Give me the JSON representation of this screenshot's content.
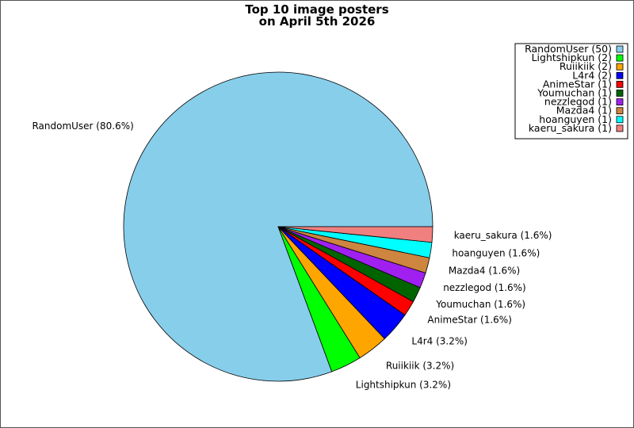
{
  "chart_data": {
    "type": "pie",
    "title": [
      "Top 10 image posters",
      "on April 5th 2026"
    ],
    "legend_position": "top-right",
    "series": [
      {
        "name": "RandomUser",
        "value": 50,
        "percent_label": "80.6%",
        "color": "#87CEEB"
      },
      {
        "name": "Lightshipkun",
        "value": 2,
        "percent_label": "3.2%",
        "color": "#00FF00"
      },
      {
        "name": "Ruiikiik",
        "value": 2,
        "percent_label": "3.2%",
        "color": "#FFA500"
      },
      {
        "name": "L4r4",
        "value": 2,
        "percent_label": "3.2%",
        "color": "#0000FF"
      },
      {
        "name": "AnimeStar",
        "value": 1,
        "percent_label": "1.6%",
        "color": "#FF0000"
      },
      {
        "name": "Youmuchan",
        "value": 1,
        "percent_label": "1.6%",
        "color": "#006400"
      },
      {
        "name": "nezzlegod",
        "value": 1,
        "percent_label": "1.6%",
        "color": "#A020F0"
      },
      {
        "name": "Mazda4",
        "value": 1,
        "percent_label": "1.6%",
        "color": "#CD853F"
      },
      {
        "name": "hoanguyen",
        "value": 1,
        "percent_label": "1.6%",
        "color": "#00FFFF"
      },
      {
        "name": "kaeru_sakura",
        "value": 1,
        "percent_label": "1.6%",
        "color": "#F08080"
      }
    ]
  }
}
